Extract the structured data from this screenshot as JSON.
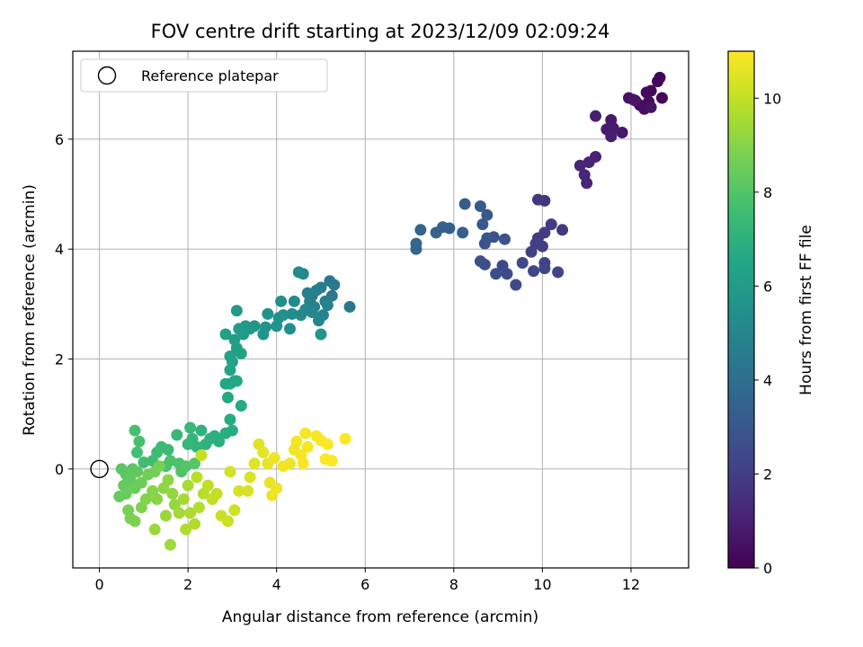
{
  "chart_data": {
    "type": "scatter",
    "title": "FOV centre drift starting at 2023/12/09 02:09:24",
    "xlabel": "Angular distance from reference (arcmin)",
    "ylabel": "Rotation from reference (arcmin)",
    "xlim": [
      -0.6,
      13.3
    ],
    "ylim": [
      -1.8,
      7.6
    ],
    "xticks": [
      0,
      2,
      4,
      6,
      8,
      10,
      12
    ],
    "yticks": [
      0,
      2,
      4,
      6
    ],
    "grid": true,
    "legend": {
      "position": "top-left",
      "entries": [
        "Reference platepar"
      ]
    },
    "reference_point": {
      "x": 0,
      "y": 0
    },
    "colorbar": {
      "label": "Hours from first FF file",
      "range": [
        0,
        11
      ],
      "ticks": [
        0,
        2,
        4,
        6,
        8,
        10
      ],
      "colormap": "viridis"
    },
    "points": [
      {
        "x": 12.65,
        "y": 7.12,
        "h": 0.05
      },
      {
        "x": 12.6,
        "y": 7.05,
        "h": 0.1
      },
      {
        "x": 12.7,
        "y": 6.75,
        "h": 0.15
      },
      {
        "x": 12.45,
        "y": 6.88,
        "h": 0.2
      },
      {
        "x": 12.35,
        "y": 6.85,
        "h": 0.25
      },
      {
        "x": 12.4,
        "y": 6.68,
        "h": 0.3
      },
      {
        "x": 12.2,
        "y": 6.62,
        "h": 0.35
      },
      {
        "x": 12.3,
        "y": 6.55,
        "h": 0.4
      },
      {
        "x": 12.1,
        "y": 6.7,
        "h": 0.45
      },
      {
        "x": 11.95,
        "y": 6.75,
        "h": 0.5
      },
      {
        "x": 12.45,
        "y": 6.58,
        "h": 0.55
      },
      {
        "x": 12.05,
        "y": 6.72,
        "h": 0.6
      },
      {
        "x": 11.8,
        "y": 6.12,
        "h": 0.7
      },
      {
        "x": 11.55,
        "y": 6.35,
        "h": 0.75
      },
      {
        "x": 11.6,
        "y": 6.2,
        "h": 0.8
      },
      {
        "x": 11.45,
        "y": 6.18,
        "h": 0.85
      },
      {
        "x": 11.55,
        "y": 6.05,
        "h": 0.9
      },
      {
        "x": 11.2,
        "y": 6.42,
        "h": 0.95
      },
      {
        "x": 11.2,
        "y": 5.68,
        "h": 1.05
      },
      {
        "x": 11.05,
        "y": 5.58,
        "h": 1.1
      },
      {
        "x": 10.85,
        "y": 5.52,
        "h": 1.15
      },
      {
        "x": 10.95,
        "y": 5.35,
        "h": 1.2
      },
      {
        "x": 11.0,
        "y": 5.2,
        "h": 1.25
      },
      {
        "x": 10.05,
        "y": 4.88,
        "h": 1.7
      },
      {
        "x": 9.9,
        "y": 4.9,
        "h": 1.75
      },
      {
        "x": 10.45,
        "y": 4.35,
        "h": 1.8
      },
      {
        "x": 10.2,
        "y": 4.45,
        "h": 1.85
      },
      {
        "x": 10.05,
        "y": 4.3,
        "h": 1.9
      },
      {
        "x": 10.0,
        "y": 4.05,
        "h": 1.95
      },
      {
        "x": 9.9,
        "y": 4.2,
        "h": 2.0
      },
      {
        "x": 9.85,
        "y": 4.1,
        "h": 2.05
      },
      {
        "x": 9.75,
        "y": 3.95,
        "h": 2.1
      },
      {
        "x": 10.05,
        "y": 3.75,
        "h": 2.15
      },
      {
        "x": 10.35,
        "y": 3.58,
        "h": 2.2
      },
      {
        "x": 10.05,
        "y": 3.65,
        "h": 2.25
      },
      {
        "x": 9.8,
        "y": 3.6,
        "h": 2.3
      },
      {
        "x": 9.55,
        "y": 3.75,
        "h": 2.35
      },
      {
        "x": 9.4,
        "y": 3.35,
        "h": 2.4
      },
      {
        "x": 9.2,
        "y": 3.55,
        "h": 2.45
      },
      {
        "x": 9.1,
        "y": 3.7,
        "h": 2.5
      },
      {
        "x": 8.95,
        "y": 3.55,
        "h": 2.55
      },
      {
        "x": 8.7,
        "y": 3.72,
        "h": 2.6
      },
      {
        "x": 8.6,
        "y": 3.78,
        "h": 2.65
      },
      {
        "x": 9.15,
        "y": 4.18,
        "h": 2.75
      },
      {
        "x": 8.9,
        "y": 4.22,
        "h": 2.8
      },
      {
        "x": 8.7,
        "y": 4.1,
        "h": 2.85
      },
      {
        "x": 8.75,
        "y": 4.2,
        "h": 2.9
      },
      {
        "x": 8.65,
        "y": 4.45,
        "h": 3.0
      },
      {
        "x": 8.75,
        "y": 4.62,
        "h": 3.05
      },
      {
        "x": 8.6,
        "y": 4.78,
        "h": 3.1
      },
      {
        "x": 8.25,
        "y": 4.82,
        "h": 3.2
      },
      {
        "x": 8.2,
        "y": 4.3,
        "h": 3.3
      },
      {
        "x": 7.9,
        "y": 4.38,
        "h": 3.35
      },
      {
        "x": 7.75,
        "y": 4.4,
        "h": 3.4
      },
      {
        "x": 7.6,
        "y": 4.3,
        "h": 3.45
      },
      {
        "x": 7.25,
        "y": 4.35,
        "h": 3.55
      },
      {
        "x": 7.15,
        "y": 4.1,
        "h": 3.6
      },
      {
        "x": 7.15,
        "y": 4.0,
        "h": 3.65
      },
      {
        "x": 5.65,
        "y": 2.95,
        "h": 4.3
      },
      {
        "x": 5.3,
        "y": 3.35,
        "h": 4.35
      },
      {
        "x": 5.2,
        "y": 3.42,
        "h": 4.4
      },
      {
        "x": 5.25,
        "y": 3.15,
        "h": 4.45
      },
      {
        "x": 5.1,
        "y": 3.05,
        "h": 4.5
      },
      {
        "x": 5.0,
        "y": 3.3,
        "h": 4.55
      },
      {
        "x": 4.9,
        "y": 3.25,
        "h": 4.6
      },
      {
        "x": 4.8,
        "y": 3.15,
        "h": 4.65
      },
      {
        "x": 4.75,
        "y": 3.05,
        "h": 4.7
      },
      {
        "x": 4.7,
        "y": 3.2,
        "h": 4.75
      },
      {
        "x": 4.85,
        "y": 2.95,
        "h": 4.8
      },
      {
        "x": 5.15,
        "y": 2.98,
        "h": 4.85
      },
      {
        "x": 5.05,
        "y": 2.8,
        "h": 4.9
      },
      {
        "x": 4.95,
        "y": 2.7,
        "h": 4.95
      },
      {
        "x": 4.8,
        "y": 2.85,
        "h": 5.0
      },
      {
        "x": 4.65,
        "y": 2.9,
        "h": 5.05
      },
      {
        "x": 4.55,
        "y": 2.8,
        "h": 5.1
      },
      {
        "x": 4.6,
        "y": 3.55,
        "h": 5.15
      },
      {
        "x": 4.5,
        "y": 3.58,
        "h": 5.2
      },
      {
        "x": 4.4,
        "y": 3.05,
        "h": 5.25
      },
      {
        "x": 4.35,
        "y": 2.82,
        "h": 5.3
      },
      {
        "x": 4.3,
        "y": 2.55,
        "h": 5.35
      },
      {
        "x": 4.1,
        "y": 3.05,
        "h": 5.4
      },
      {
        "x": 4.15,
        "y": 2.8,
        "h": 5.45
      },
      {
        "x": 4.05,
        "y": 2.75,
        "h": 5.5
      },
      {
        "x": 4.0,
        "y": 2.6,
        "h": 5.55
      },
      {
        "x": 3.8,
        "y": 2.82,
        "h": 5.6
      },
      {
        "x": 3.75,
        "y": 2.58,
        "h": 5.65
      },
      {
        "x": 3.7,
        "y": 2.45,
        "h": 5.7
      },
      {
        "x": 5.0,
        "y": 2.45,
        "h": 5.75
      },
      {
        "x": 3.5,
        "y": 2.6,
        "h": 5.8
      },
      {
        "x": 3.4,
        "y": 2.55,
        "h": 5.85
      },
      {
        "x": 3.3,
        "y": 2.6,
        "h": 5.9
      },
      {
        "x": 3.25,
        "y": 2.45,
        "h": 5.95
      },
      {
        "x": 3.1,
        "y": 2.88,
        "h": 6.0
      },
      {
        "x": 3.15,
        "y": 2.55,
        "h": 6.05
      },
      {
        "x": 3.05,
        "y": 2.35,
        "h": 6.1
      },
      {
        "x": 2.85,
        "y": 2.45,
        "h": 6.15
      },
      {
        "x": 3.1,
        "y": 2.2,
        "h": 6.2
      },
      {
        "x": 3.2,
        "y": 2.1,
        "h": 6.25
      },
      {
        "x": 2.95,
        "y": 2.05,
        "h": 6.3
      },
      {
        "x": 3.0,
        "y": 1.95,
        "h": 6.35
      },
      {
        "x": 2.95,
        "y": 1.8,
        "h": 6.4
      },
      {
        "x": 3.05,
        "y": 1.6,
        "h": 6.45
      },
      {
        "x": 2.85,
        "y": 1.55,
        "h": 6.5
      },
      {
        "x": 2.95,
        "y": 1.55,
        "h": 6.55
      },
      {
        "x": 3.1,
        "y": 1.6,
        "h": 6.6
      },
      {
        "x": 2.9,
        "y": 1.3,
        "h": 6.65
      },
      {
        "x": 3.2,
        "y": 1.15,
        "h": 6.7
      },
      {
        "x": 2.95,
        "y": 0.9,
        "h": 6.75
      },
      {
        "x": 3.0,
        "y": 0.7,
        "h": 6.8
      },
      {
        "x": 2.85,
        "y": 0.65,
        "h": 6.85
      },
      {
        "x": 2.7,
        "y": 0.5,
        "h": 6.9
      },
      {
        "x": 2.6,
        "y": 0.6,
        "h": 6.95
      },
      {
        "x": 2.5,
        "y": 0.55,
        "h": 7.0
      },
      {
        "x": 2.4,
        "y": 0.45,
        "h": 7.05
      },
      {
        "x": 2.3,
        "y": 0.7,
        "h": 7.1
      },
      {
        "x": 2.2,
        "y": 0.4,
        "h": 7.15
      },
      {
        "x": 2.1,
        "y": 0.55,
        "h": 7.2
      },
      {
        "x": 2.0,
        "y": 0.45,
        "h": 7.25
      },
      {
        "x": 2.05,
        "y": 0.75,
        "h": 7.3
      },
      {
        "x": 1.75,
        "y": 0.62,
        "h": 7.35
      },
      {
        "x": 1.55,
        "y": 0.35,
        "h": 7.4
      },
      {
        "x": 1.4,
        "y": 0.4,
        "h": 7.45
      },
      {
        "x": 1.3,
        "y": 0.3,
        "h": 7.5
      },
      {
        "x": 1.2,
        "y": 0.15,
        "h": 7.55
      },
      {
        "x": 1.0,
        "y": 0.12,
        "h": 7.6
      },
      {
        "x": 0.85,
        "y": 0.3,
        "h": 7.65
      },
      {
        "x": 0.9,
        "y": 0.5,
        "h": 7.7
      },
      {
        "x": 0.8,
        "y": 0.7,
        "h": 7.75
      },
      {
        "x": 1.5,
        "y": 0.05,
        "h": 7.8
      },
      {
        "x": 1.6,
        "y": 0.15,
        "h": 7.85
      },
      {
        "x": 1.8,
        "y": 0.1,
        "h": 7.9
      },
      {
        "x": 1.85,
        "y": -0.05,
        "h": 7.95
      },
      {
        "x": 1.95,
        "y": 0.05,
        "h": 8.0
      },
      {
        "x": 2.15,
        "y": 0.1,
        "h": 8.05
      },
      {
        "x": 0.5,
        "y": 0.0,
        "h": 8.1
      },
      {
        "x": 0.6,
        "y": -0.1,
        "h": 8.15
      },
      {
        "x": 0.75,
        "y": 0.0,
        "h": 8.2
      },
      {
        "x": 0.85,
        "y": -0.05,
        "h": 8.25
      },
      {
        "x": 0.7,
        "y": -0.2,
        "h": 8.3
      },
      {
        "x": 0.55,
        "y": -0.3,
        "h": 8.35
      },
      {
        "x": 0.45,
        "y": -0.5,
        "h": 8.4
      },
      {
        "x": 0.6,
        "y": -0.45,
        "h": 8.45
      },
      {
        "x": 0.8,
        "y": -0.35,
        "h": 8.5
      },
      {
        "x": 0.95,
        "y": -0.25,
        "h": 8.55
      },
      {
        "x": 1.1,
        "y": -0.1,
        "h": 8.6
      },
      {
        "x": 1.25,
        "y": -0.05,
        "h": 8.65
      },
      {
        "x": 1.35,
        "y": 0.05,
        "h": 8.7
      },
      {
        "x": 0.65,
        "y": -0.75,
        "h": 8.75
      },
      {
        "x": 0.7,
        "y": -0.9,
        "h": 8.8
      },
      {
        "x": 0.8,
        "y": -0.95,
        "h": 8.85
      },
      {
        "x": 0.95,
        "y": -0.7,
        "h": 8.9
      },
      {
        "x": 1.05,
        "y": -0.55,
        "h": 8.95
      },
      {
        "x": 1.2,
        "y": -0.4,
        "h": 9.0
      },
      {
        "x": 1.3,
        "y": -0.55,
        "h": 9.05
      },
      {
        "x": 1.45,
        "y": -0.35,
        "h": 9.1
      },
      {
        "x": 1.55,
        "y": -0.2,
        "h": 9.15
      },
      {
        "x": 1.65,
        "y": -0.45,
        "h": 9.2
      },
      {
        "x": 1.7,
        "y": -0.65,
        "h": 9.25
      },
      {
        "x": 1.5,
        "y": -0.85,
        "h": 9.3
      },
      {
        "x": 1.25,
        "y": -1.1,
        "h": 9.35
      },
      {
        "x": 1.6,
        "y": -1.38,
        "h": 9.4
      },
      {
        "x": 1.8,
        "y": -0.8,
        "h": 9.45
      },
      {
        "x": 1.9,
        "y": -0.55,
        "h": 9.5
      },
      {
        "x": 2.0,
        "y": -0.3,
        "h": 9.55
      },
      {
        "x": 2.05,
        "y": -0.8,
        "h": 9.6
      },
      {
        "x": 1.95,
        "y": -1.1,
        "h": 9.65
      },
      {
        "x": 2.15,
        "y": -1.0,
        "h": 9.7
      },
      {
        "x": 2.25,
        "y": -0.7,
        "h": 9.75
      },
      {
        "x": 2.35,
        "y": -0.45,
        "h": 9.8
      },
      {
        "x": 2.2,
        "y": -0.15,
        "h": 9.85
      },
      {
        "x": 2.45,
        "y": -0.3,
        "h": 9.9
      },
      {
        "x": 2.55,
        "y": -0.55,
        "h": 9.95
      },
      {
        "x": 2.65,
        "y": -0.45,
        "h": 10.0
      },
      {
        "x": 2.3,
        "y": 0.25,
        "h": 10.05
      },
      {
        "x": 2.75,
        "y": -0.85,
        "h": 10.1
      },
      {
        "x": 2.9,
        "y": -0.95,
        "h": 10.15
      },
      {
        "x": 3.05,
        "y": -0.75,
        "h": 10.2
      },
      {
        "x": 2.95,
        "y": -0.05,
        "h": 10.25
      },
      {
        "x": 3.15,
        "y": -0.4,
        "h": 10.3
      },
      {
        "x": 3.35,
        "y": -0.4,
        "h": 10.35
      },
      {
        "x": 3.4,
        "y": -0.15,
        "h": 10.4
      },
      {
        "x": 3.5,
        "y": 0.1,
        "h": 10.45
      },
      {
        "x": 3.6,
        "y": 0.45,
        "h": 10.5
      },
      {
        "x": 3.7,
        "y": 0.3,
        "h": 10.55
      },
      {
        "x": 3.8,
        "y": 0.1,
        "h": 10.6
      },
      {
        "x": 3.85,
        "y": -0.25,
        "h": 10.65
      },
      {
        "x": 3.9,
        "y": -0.48,
        "h": 10.7
      },
      {
        "x": 4.0,
        "y": -0.35,
        "h": 10.72
      },
      {
        "x": 3.95,
        "y": 0.2,
        "h": 10.74
      },
      {
        "x": 4.15,
        "y": 0.05,
        "h": 10.76
      },
      {
        "x": 4.3,
        "y": 0.1,
        "h": 10.78
      },
      {
        "x": 4.4,
        "y": 0.35,
        "h": 10.8
      },
      {
        "x": 4.45,
        "y": 0.5,
        "h": 10.82
      },
      {
        "x": 4.55,
        "y": 0.25,
        "h": 10.84
      },
      {
        "x": 4.65,
        "y": 0.65,
        "h": 10.86
      },
      {
        "x": 4.7,
        "y": 0.4,
        "h": 10.88
      },
      {
        "x": 4.6,
        "y": 0.1,
        "h": 10.9
      },
      {
        "x": 4.9,
        "y": 0.6,
        "h": 10.92
      },
      {
        "x": 5.0,
        "y": 0.52,
        "h": 10.94
      },
      {
        "x": 5.15,
        "y": 0.45,
        "h": 10.96
      },
      {
        "x": 5.1,
        "y": 0.18,
        "h": 10.97
      },
      {
        "x": 5.25,
        "y": 0.15,
        "h": 10.98
      },
      {
        "x": 5.55,
        "y": 0.55,
        "h": 10.99
      }
    ]
  }
}
